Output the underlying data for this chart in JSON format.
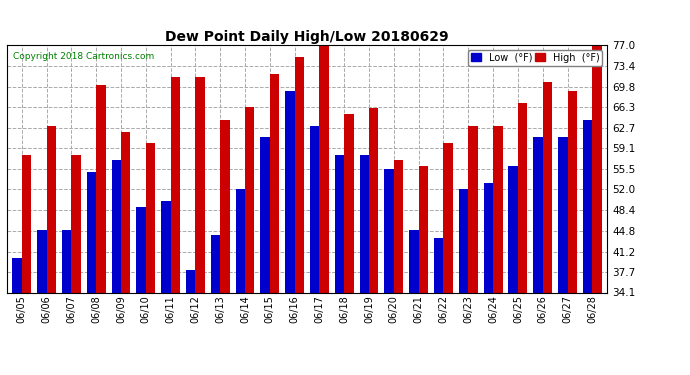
{
  "title": "Dew Point Daily High/Low 20180629",
  "copyright": "Copyright 2018 Cartronics.com",
  "legend_low": "Low  (°F)",
  "legend_high": "High  (°F)",
  "dates": [
    "06/05",
    "06/06",
    "06/07",
    "06/08",
    "06/09",
    "06/10",
    "06/11",
    "06/12",
    "06/13",
    "06/14",
    "06/15",
    "06/16",
    "06/17",
    "06/18",
    "06/19",
    "06/20",
    "06/21",
    "06/22",
    "06/23",
    "06/24",
    "06/25",
    "06/26",
    "06/27",
    "06/28"
  ],
  "low": [
    40.0,
    45.0,
    45.0,
    55.0,
    57.0,
    49.0,
    50.0,
    38.0,
    44.0,
    52.0,
    61.0,
    69.0,
    63.0,
    58.0,
    58.0,
    55.5,
    45.0,
    43.5,
    52.0,
    53.0,
    56.0,
    61.0,
    61.0,
    64.0
  ],
  "high": [
    58.0,
    63.0,
    58.0,
    70.0,
    62.0,
    60.0,
    71.5,
    71.5,
    64.0,
    66.3,
    72.0,
    75.0,
    77.0,
    65.0,
    66.0,
    57.0,
    56.0,
    60.0,
    63.0,
    63.0,
    67.0,
    70.5,
    69.0,
    77.0
  ],
  "ylim_min": 34.1,
  "ylim_max": 77.0,
  "yticks": [
    34.1,
    37.7,
    41.2,
    44.8,
    48.4,
    52.0,
    55.5,
    59.1,
    62.7,
    66.3,
    69.8,
    73.4,
    77.0
  ],
  "bg_color": "#ffffff",
  "grid_color": "#aaaaaa",
  "low_color": "#0000cc",
  "high_color": "#cc0000",
  "bar_width": 0.38,
  "bar_bottom": 34.1
}
